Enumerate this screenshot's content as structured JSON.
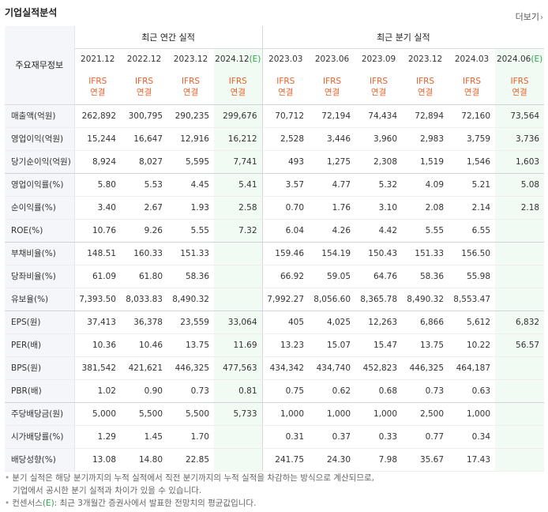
{
  "title": "기업실적분석",
  "more_label": "더보기",
  "more_icon": "chevron-right-icon",
  "header": {
    "label_col": "주요재무정보",
    "annual_title": "최근 연간 실적",
    "quarter_title": "최근 분기 실적",
    "annual_periods": [
      "2021.12",
      "2022.12",
      "2023.12",
      "2024.12"
    ],
    "quarter_periods": [
      "2023.03",
      "2023.06",
      "2023.09",
      "2023.12",
      "2024.03",
      "2024.06"
    ],
    "estimate_mark": "(E)",
    "ifrs": "IFRS",
    "consolidated": "연결"
  },
  "rows": [
    {
      "label": "매출액(억원)",
      "values": [
        "262,892",
        "300,795",
        "290,235",
        "299,676",
        "70,712",
        "72,194",
        "74,434",
        "72,894",
        "72,160",
        "73,564"
      ]
    },
    {
      "label": "영업이익(억원)",
      "values": [
        "15,244",
        "16,647",
        "12,916",
        "16,212",
        "2,528",
        "3,446",
        "3,960",
        "2,983",
        "3,759",
        "3,736"
      ]
    },
    {
      "label": "당기순이익(억원)",
      "values": [
        "8,924",
        "8,027",
        "5,595",
        "7,741",
        "493",
        "1,275",
        "2,308",
        "1,519",
        "1,546",
        "1,603"
      ]
    },
    {
      "label": "영업이익률(%)",
      "values": [
        "5.80",
        "5.53",
        "4.45",
        "5.41",
        "3.57",
        "4.77",
        "5.32",
        "4.09",
        "5.21",
        "5.08"
      ]
    },
    {
      "label": "순이익률(%)",
      "values": [
        "3.40",
        "2.67",
        "1.93",
        "2.58",
        "0.70",
        "1.76",
        "3.10",
        "2.08",
        "2.14",
        "2.18"
      ]
    },
    {
      "label": "ROE(%)",
      "values": [
        "10.76",
        "9.26",
        "5.55",
        "7.32",
        "6.04",
        "4.26",
        "4.42",
        "5.55",
        "6.55",
        ""
      ]
    },
    {
      "label": "부채비율(%)",
      "values": [
        "148.51",
        "160.33",
        "151.33",
        "",
        "159.46",
        "154.19",
        "150.43",
        "151.33",
        "156.50",
        ""
      ]
    },
    {
      "label": "당좌비율(%)",
      "values": [
        "61.09",
        "61.80",
        "58.36",
        "",
        "66.92",
        "59.05",
        "64.76",
        "58.36",
        "55.98",
        ""
      ]
    },
    {
      "label": "유보율(%)",
      "values": [
        "7,393.50",
        "8,033.83",
        "8,490.32",
        "",
        "7,992.27",
        "8,056.60",
        "8,365.78",
        "8,490.32",
        "8,553.47",
        ""
      ]
    },
    {
      "label": "EPS(원)",
      "values": [
        "37,413",
        "36,378",
        "23,559",
        "33,064",
        "405",
        "4,025",
        "12,263",
        "6,866",
        "5,612",
        "6,832"
      ]
    },
    {
      "label": "PER(배)",
      "values": [
        "10.36",
        "10.46",
        "13.75",
        "11.69",
        "13.23",
        "15.07",
        "15.47",
        "13.75",
        "10.22",
        "56.57"
      ]
    },
    {
      "label": "BPS(원)",
      "values": [
        "381,542",
        "421,621",
        "446,325",
        "477,563",
        "434,342",
        "434,740",
        "452,823",
        "446,325",
        "464,187",
        ""
      ]
    },
    {
      "label": "PBR(배)",
      "values": [
        "1.02",
        "0.90",
        "0.73",
        "0.81",
        "0.75",
        "0.62",
        "0.68",
        "0.73",
        "0.63",
        ""
      ]
    },
    {
      "label": "주당배당금(원)",
      "values": [
        "5,000",
        "5,500",
        "5,500",
        "5,733",
        "1,000",
        "1,000",
        "1,000",
        "2,500",
        "1,000",
        ""
      ]
    },
    {
      "label": "시가배당률(%)",
      "values": [
        "1.29",
        "1.45",
        "1.70",
        "",
        "0.31",
        "0.37",
        "0.33",
        "0.77",
        "0.34",
        ""
      ]
    },
    {
      "label": "배당성향(%)",
      "values": [
        "13.08",
        "14.80",
        "22.85",
        "",
        "241.75",
        "24.30",
        "7.98",
        "35.67",
        "17.43",
        ""
      ]
    }
  ],
  "notes": {
    "line1": "분기 실적은 해당 분기까지의 누적 실적에서 직전 분기까지의 누적 실적을 차감하는 방식으로 계산되므로,",
    "line2": "기업에서 공시한 분기 실적과 차이가 있을 수 있습니다.",
    "line3_prefix": "컨센서스",
    "line3_mark": "(E)",
    "line3_rest": ": 최근 3개월간 증권사에서 발표한 전망치의 평균값입니다."
  }
}
